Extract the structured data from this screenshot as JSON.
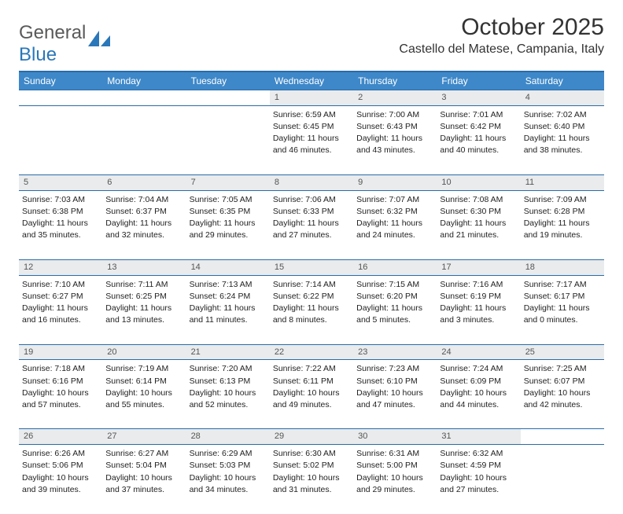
{
  "logo": {
    "word1": "General",
    "word2": "Blue"
  },
  "title": "October 2025",
  "location": "Castello del Matese, Campania, Italy",
  "colors": {
    "header_bg": "#3e88c9",
    "header_border": "#2a6ca8",
    "daynum_bg": "#e9ebec",
    "logo_gray": "#5a5a5a",
    "logo_blue": "#2a77b9"
  },
  "weekdays": [
    "Sunday",
    "Monday",
    "Tuesday",
    "Wednesday",
    "Thursday",
    "Friday",
    "Saturday"
  ],
  "weeks": [
    {
      "nums": [
        "",
        "",
        "",
        "1",
        "2",
        "3",
        "4"
      ],
      "cells": [
        null,
        null,
        null,
        {
          "sr": "Sunrise: 6:59 AM",
          "ss": "Sunset: 6:45 PM",
          "dl1": "Daylight: 11 hours",
          "dl2": "and 46 minutes."
        },
        {
          "sr": "Sunrise: 7:00 AM",
          "ss": "Sunset: 6:43 PM",
          "dl1": "Daylight: 11 hours",
          "dl2": "and 43 minutes."
        },
        {
          "sr": "Sunrise: 7:01 AM",
          "ss": "Sunset: 6:42 PM",
          "dl1": "Daylight: 11 hours",
          "dl2": "and 40 minutes."
        },
        {
          "sr": "Sunrise: 7:02 AM",
          "ss": "Sunset: 6:40 PM",
          "dl1": "Daylight: 11 hours",
          "dl2": "and 38 minutes."
        }
      ]
    },
    {
      "nums": [
        "5",
        "6",
        "7",
        "8",
        "9",
        "10",
        "11"
      ],
      "cells": [
        {
          "sr": "Sunrise: 7:03 AM",
          "ss": "Sunset: 6:38 PM",
          "dl1": "Daylight: 11 hours",
          "dl2": "and 35 minutes."
        },
        {
          "sr": "Sunrise: 7:04 AM",
          "ss": "Sunset: 6:37 PM",
          "dl1": "Daylight: 11 hours",
          "dl2": "and 32 minutes."
        },
        {
          "sr": "Sunrise: 7:05 AM",
          "ss": "Sunset: 6:35 PM",
          "dl1": "Daylight: 11 hours",
          "dl2": "and 29 minutes."
        },
        {
          "sr": "Sunrise: 7:06 AM",
          "ss": "Sunset: 6:33 PM",
          "dl1": "Daylight: 11 hours",
          "dl2": "and 27 minutes."
        },
        {
          "sr": "Sunrise: 7:07 AM",
          "ss": "Sunset: 6:32 PM",
          "dl1": "Daylight: 11 hours",
          "dl2": "and 24 minutes."
        },
        {
          "sr": "Sunrise: 7:08 AM",
          "ss": "Sunset: 6:30 PM",
          "dl1": "Daylight: 11 hours",
          "dl2": "and 21 minutes."
        },
        {
          "sr": "Sunrise: 7:09 AM",
          "ss": "Sunset: 6:28 PM",
          "dl1": "Daylight: 11 hours",
          "dl2": "and 19 minutes."
        }
      ]
    },
    {
      "nums": [
        "12",
        "13",
        "14",
        "15",
        "16",
        "17",
        "18"
      ],
      "cells": [
        {
          "sr": "Sunrise: 7:10 AM",
          "ss": "Sunset: 6:27 PM",
          "dl1": "Daylight: 11 hours",
          "dl2": "and 16 minutes."
        },
        {
          "sr": "Sunrise: 7:11 AM",
          "ss": "Sunset: 6:25 PM",
          "dl1": "Daylight: 11 hours",
          "dl2": "and 13 minutes."
        },
        {
          "sr": "Sunrise: 7:13 AM",
          "ss": "Sunset: 6:24 PM",
          "dl1": "Daylight: 11 hours",
          "dl2": "and 11 minutes."
        },
        {
          "sr": "Sunrise: 7:14 AM",
          "ss": "Sunset: 6:22 PM",
          "dl1": "Daylight: 11 hours",
          "dl2": "and 8 minutes."
        },
        {
          "sr": "Sunrise: 7:15 AM",
          "ss": "Sunset: 6:20 PM",
          "dl1": "Daylight: 11 hours",
          "dl2": "and 5 minutes."
        },
        {
          "sr": "Sunrise: 7:16 AM",
          "ss": "Sunset: 6:19 PM",
          "dl1": "Daylight: 11 hours",
          "dl2": "and 3 minutes."
        },
        {
          "sr": "Sunrise: 7:17 AM",
          "ss": "Sunset: 6:17 PM",
          "dl1": "Daylight: 11 hours",
          "dl2": "and 0 minutes."
        }
      ]
    },
    {
      "nums": [
        "19",
        "20",
        "21",
        "22",
        "23",
        "24",
        "25"
      ],
      "cells": [
        {
          "sr": "Sunrise: 7:18 AM",
          "ss": "Sunset: 6:16 PM",
          "dl1": "Daylight: 10 hours",
          "dl2": "and 57 minutes."
        },
        {
          "sr": "Sunrise: 7:19 AM",
          "ss": "Sunset: 6:14 PM",
          "dl1": "Daylight: 10 hours",
          "dl2": "and 55 minutes."
        },
        {
          "sr": "Sunrise: 7:20 AM",
          "ss": "Sunset: 6:13 PM",
          "dl1": "Daylight: 10 hours",
          "dl2": "and 52 minutes."
        },
        {
          "sr": "Sunrise: 7:22 AM",
          "ss": "Sunset: 6:11 PM",
          "dl1": "Daylight: 10 hours",
          "dl2": "and 49 minutes."
        },
        {
          "sr": "Sunrise: 7:23 AM",
          "ss": "Sunset: 6:10 PM",
          "dl1": "Daylight: 10 hours",
          "dl2": "and 47 minutes."
        },
        {
          "sr": "Sunrise: 7:24 AM",
          "ss": "Sunset: 6:09 PM",
          "dl1": "Daylight: 10 hours",
          "dl2": "and 44 minutes."
        },
        {
          "sr": "Sunrise: 7:25 AM",
          "ss": "Sunset: 6:07 PM",
          "dl1": "Daylight: 10 hours",
          "dl2": "and 42 minutes."
        }
      ]
    },
    {
      "nums": [
        "26",
        "27",
        "28",
        "29",
        "30",
        "31",
        ""
      ],
      "cells": [
        {
          "sr": "Sunrise: 6:26 AM",
          "ss": "Sunset: 5:06 PM",
          "dl1": "Daylight: 10 hours",
          "dl2": "and 39 minutes."
        },
        {
          "sr": "Sunrise: 6:27 AM",
          "ss": "Sunset: 5:04 PM",
          "dl1": "Daylight: 10 hours",
          "dl2": "and 37 minutes."
        },
        {
          "sr": "Sunrise: 6:29 AM",
          "ss": "Sunset: 5:03 PM",
          "dl1": "Daylight: 10 hours",
          "dl2": "and 34 minutes."
        },
        {
          "sr": "Sunrise: 6:30 AM",
          "ss": "Sunset: 5:02 PM",
          "dl1": "Daylight: 10 hours",
          "dl2": "and 31 minutes."
        },
        {
          "sr": "Sunrise: 6:31 AM",
          "ss": "Sunset: 5:00 PM",
          "dl1": "Daylight: 10 hours",
          "dl2": "and 29 minutes."
        },
        {
          "sr": "Sunrise: 6:32 AM",
          "ss": "Sunset: 4:59 PM",
          "dl1": "Daylight: 10 hours",
          "dl2": "and 27 minutes."
        },
        null
      ]
    }
  ]
}
